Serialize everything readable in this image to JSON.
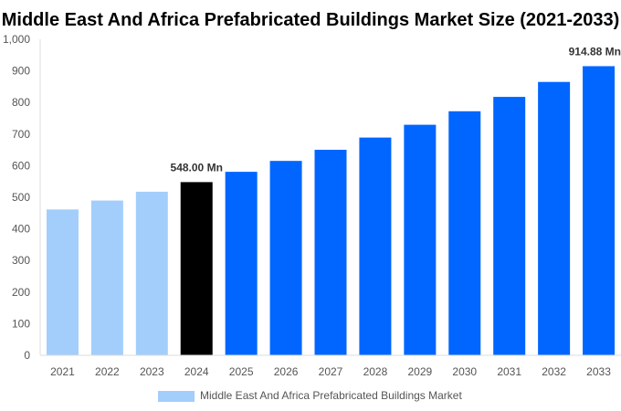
{
  "chart_data": {
    "type": "bar",
    "title": "Middle East And Africa Prefabricated Buildings Market Size (2021-2033)",
    "categories": [
      "2021",
      "2022",
      "2023",
      "2024",
      "2025",
      "2026",
      "2027",
      "2028",
      "2029",
      "2030",
      "2031",
      "2032",
      "2033"
    ],
    "series": [
      {
        "name": "Middle East And Africa Prefabricated Buildings Market",
        "values": [
          461.5,
          489.7,
          517.6,
          548.0,
          580.6,
          615.1,
          650.3,
          689.0,
          729.5,
          772.2,
          817.7,
          865.0,
          914.88
        ]
      }
    ],
    "data_labels": [
      {
        "category": "2024",
        "text": "548.00 Mn"
      },
      {
        "category": "2033",
        "text": "914.88 Mn"
      }
    ],
    "ylim": [
      0,
      1000
    ],
    "yticks": [
      "0",
      "100",
      "200",
      "300",
      "400",
      "500",
      "600",
      "700",
      "800",
      "900",
      "1,000"
    ],
    "grid": false,
    "legend": "bottom",
    "colors": {
      "historical": "#a3cefc",
      "base_year": "#000000",
      "forecast": "#0066ff",
      "legend_swatch": "#a3cefc"
    }
  }
}
